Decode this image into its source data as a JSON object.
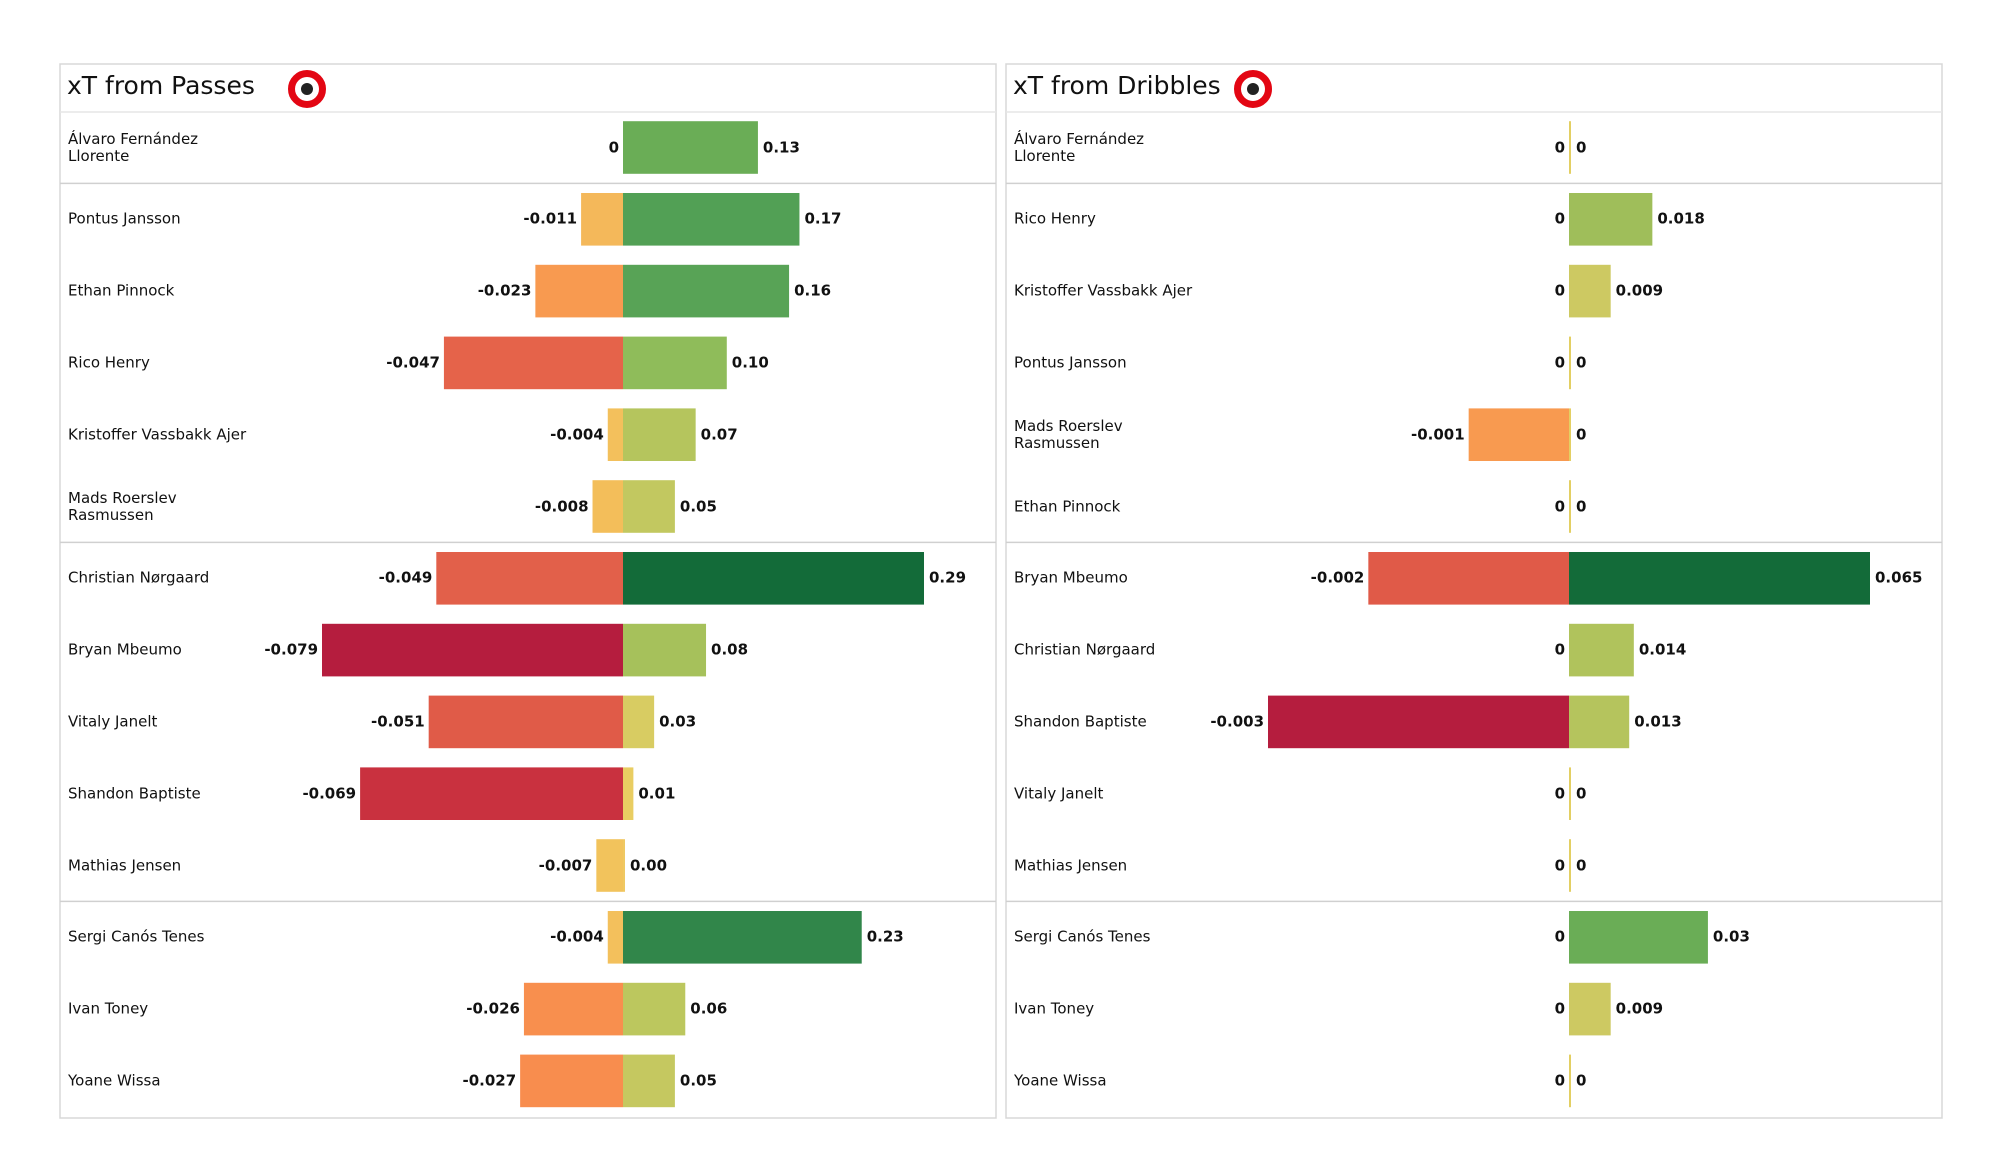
{
  "chart_data": [
    {
      "type": "diverging-bar",
      "title": "xT from Passes",
      "categories": [
        "Álvaro Fernández\nLlorente",
        "Pontus Jansson",
        "Ethan Pinnock",
        "Rico Henry",
        "Kristoffer Vassbakk Ajer",
        "Mads Roerslev\nRasmussen",
        "Christian Nørgaard",
        "Bryan Mbeumo",
        "Vitaly Janelt",
        "Shandon Baptiste",
        "Mathias Jensen",
        "Sergi Canós Tenes",
        "Ivan Toney",
        "Yoane Wissa"
      ],
      "series": [
        {
          "values": [
            0,
            -0.011,
            -0.023,
            -0.047,
            -0.004,
            -0.008,
            -0.049,
            -0.079,
            -0.051,
            -0.069,
            -0.007,
            -0.004,
            -0.026,
            -0.027
          ],
          "colors": [
            "#f4b85a",
            "#f4b85a",
            "#f89a50",
            "#e5634a",
            "#f3c05c",
            "#f3be5a",
            "#e2604a",
            "#b51d3e",
            "#e05b48",
            "#c9313f",
            "#f2c35c",
            "#f3c05c",
            "#f88f4e",
            "#f88d4e"
          ]
        },
        {
          "values": [
            0.13,
            0.17,
            0.16,
            0.1,
            0.07,
            0.05,
            0.29,
            0.08,
            0.03,
            0.01,
            0,
            0.23,
            0.06,
            0.05
          ],
          "value_labels": [
            "0.13",
            "0.17",
            "0.16",
            "0.10",
            "0.07",
            "0.05",
            "0.29",
            "0.08",
            "0.03",
            "0.01",
            "0.00",
            "0.23",
            "0.06",
            "0.05"
          ],
          "colors": [
            "#6aad56",
            "#52a055",
            "#58a356",
            "#8fbc5a",
            "#b5c55d",
            "#c2c860",
            "#136b39",
            "#a6c15b",
            "#d8cc62",
            "#e9cd62",
            "#efc862",
            "#31864a",
            "#bcc75e",
            "#c5c860"
          ]
        }
      ]
    },
    {
      "type": "diverging-bar",
      "title": "xT from Dribbles",
      "categories": [
        "Álvaro Fernández\nLlorente",
        "Rico Henry",
        "Kristoffer Vassbakk Ajer",
        "Pontus Jansson",
        "Mads Roerslev\nRasmussen",
        "Ethan Pinnock",
        "Bryan Mbeumo",
        "Christian Nørgaard",
        "Shandon Baptiste",
        "Vitaly Janelt",
        "Mathias Jensen",
        "Sergi Canós Tenes",
        "Ivan Toney",
        "Yoane Wissa"
      ],
      "series": [
        {
          "values": [
            0,
            0,
            0,
            0,
            -0.001,
            0,
            -0.002,
            0,
            -0.003,
            0,
            0,
            0,
            0,
            0
          ],
          "colors": [
            "#f2c35c",
            "#f2c35c",
            "#f2c35c",
            "#f2c35c",
            "#f89a50",
            "#f2c35c",
            "#e05a48",
            "#f2c35c",
            "#b51d3e",
            "#f2c35c",
            "#f2c35c",
            "#f2c35c",
            "#f2c35c",
            "#f2c35c"
          ]
        },
        {
          "values": [
            0,
            0.018,
            0.009,
            0,
            0,
            0,
            0.065,
            0.014,
            0.013,
            0,
            0,
            0.03,
            0.009,
            0
          ],
          "colors": [
            "#e3cf63",
            "#9fbe5a",
            "#cdc962",
            "#e3cf63",
            "#e3cf63",
            "#e3cf63",
            "#136b39",
            "#b0c35c",
            "#b5c45d",
            "#e3cf63",
            "#e3cf63",
            "#6aad56",
            "#cdc962",
            "#e3cf63"
          ]
        }
      ]
    }
  ]
}
